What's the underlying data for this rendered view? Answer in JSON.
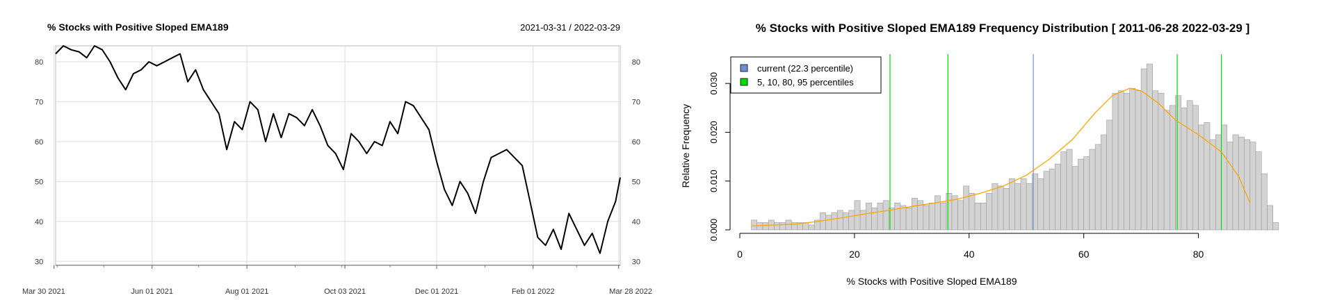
{
  "chart_data": [
    {
      "type": "line",
      "title": "% Stocks with Positive Sloped EMA189",
      "date_range_label": "2021-03-31 / 2022-03-29",
      "xlabel": "",
      "ylabel": "",
      "x_tick_labels": [
        "Mar 30 2021",
        "Jun 01 2021",
        "Aug 01 2021",
        "Oct 03 2021",
        "Dec 01 2021",
        "Feb 01 2022",
        "Mar 28 2022"
      ],
      "y_ticks": [
        30,
        40,
        50,
        60,
        70,
        80
      ],
      "ylim": [
        29,
        84
      ],
      "grid": true,
      "colors": {
        "line": "#000000",
        "grid": "#dddddd",
        "frame": "#bbbbbb"
      },
      "series": [
        {
          "x": [
            "2021-03-31",
            "2021-04-05",
            "2021-04-10",
            "2021-04-15",
            "2021-04-20",
            "2021-04-25",
            "2021-04-30",
            "2021-05-05",
            "2021-05-10",
            "2021-05-15",
            "2021-05-20",
            "2021-05-25",
            "2021-05-30",
            "2021-06-04",
            "2021-06-09",
            "2021-06-14",
            "2021-06-19",
            "2021-06-24",
            "2021-06-29",
            "2021-07-04",
            "2021-07-09",
            "2021-07-14",
            "2021-07-19",
            "2021-07-24",
            "2021-07-29",
            "2021-08-03",
            "2021-08-08",
            "2021-08-13",
            "2021-08-18",
            "2021-08-23",
            "2021-08-28",
            "2021-09-02",
            "2021-09-07",
            "2021-09-12",
            "2021-09-17",
            "2021-09-22",
            "2021-09-27",
            "2021-10-02",
            "2021-10-07",
            "2021-10-12",
            "2021-10-17",
            "2021-10-22",
            "2021-10-27",
            "2021-11-01",
            "2021-11-06",
            "2021-11-11",
            "2021-11-16",
            "2021-11-21",
            "2021-11-26",
            "2021-12-01",
            "2021-12-06",
            "2021-12-11",
            "2021-12-16",
            "2021-12-21",
            "2021-12-26",
            "2021-12-31",
            "2022-01-05",
            "2022-01-10",
            "2022-01-15",
            "2022-01-20",
            "2022-01-25",
            "2022-01-30",
            "2022-02-04",
            "2022-02-09",
            "2022-02-14",
            "2022-02-19",
            "2022-02-24",
            "2022-03-01",
            "2022-03-06",
            "2022-03-11",
            "2022-03-16",
            "2022-03-21",
            "2022-03-26",
            "2022-03-29"
          ],
          "values": [
            82,
            84,
            83,
            82.5,
            81,
            84,
            83,
            80,
            76,
            73,
            77,
            78,
            80,
            79,
            80,
            81,
            82,
            75,
            78,
            73,
            70,
            67,
            58,
            65,
            63,
            70,
            68,
            60,
            67,
            61,
            67,
            66,
            64,
            68,
            64,
            59,
            57,
            53,
            62,
            60,
            57,
            60,
            59,
            65,
            62,
            70,
            69,
            66,
            63,
            55,
            48,
            44,
            50,
            47,
            42,
            50,
            56,
            57,
            58,
            56,
            54,
            45,
            36,
            34,
            38,
            33,
            42,
            38,
            34,
            37,
            32,
            40,
            45,
            51
          ]
        }
      ]
    },
    {
      "type": "histogram",
      "title": "% Stocks with Positive Sloped EMA189 Frequency Distribution [ 2011-06-28 2022-03-29 ]",
      "xlabel": "% Stocks with Positive Sloped EMA189",
      "ylabel": "Relative Frequency",
      "xlim": [
        0,
        90
      ],
      "ylim": [
        0,
        0.036
      ],
      "x_ticks": [
        0,
        20,
        40,
        60,
        80
      ],
      "x_tick_labels": [
        "0",
        "20",
        "40",
        "60",
        "80"
      ],
      "y_ticks": [
        0.0,
        0.01,
        0.02,
        0.03
      ],
      "y_tick_labels": [
        "0.000",
        "0.010",
        "0.020",
        "0.030"
      ],
      "bin_width": 1,
      "bin_start": 2,
      "values": [
        0.002,
        0.0015,
        0.0015,
        0.002,
        0.0015,
        0.0015,
        0.002,
        0.0015,
        0.0015,
        0.0015,
        0.001,
        0.002,
        0.0035,
        0.003,
        0.0035,
        0.004,
        0.0035,
        0.004,
        0.006,
        0.004,
        0.0055,
        0.0045,
        0.0055,
        0.006,
        0.0045,
        0.0055,
        0.005,
        0.0045,
        0.0065,
        0.006,
        0.005,
        0.0055,
        0.007,
        0.0055,
        0.0075,
        0.007,
        0.006,
        0.009,
        0.0075,
        0.0055,
        0.0055,
        0.0075,
        0.0095,
        0.009,
        0.0085,
        0.0105,
        0.0095,
        0.0105,
        0.0095,
        0.0115,
        0.0105,
        0.012,
        0.0125,
        0.0135,
        0.016,
        0.0165,
        0.013,
        0.0145,
        0.015,
        0.0165,
        0.0175,
        0.0195,
        0.0225,
        0.028,
        0.0285,
        0.028,
        0.029,
        0.0285,
        0.033,
        0.034,
        0.0285,
        0.028,
        0.0245,
        0.0255,
        0.0275,
        0.025,
        0.0265,
        0.0255,
        0.0215,
        0.022,
        0.0185,
        0.0195,
        0.0215,
        0.018,
        0.0195,
        0.019,
        0.0185,
        0.018,
        0.016,
        0.0115,
        0.005,
        0.0015
      ],
      "density_curve": {
        "x": [
          2,
          6,
          10,
          14,
          18,
          22,
          26,
          30,
          34,
          38,
          42,
          46,
          50,
          54,
          58,
          62,
          65,
          68,
          70,
          73,
          76,
          80,
          84,
          87,
          89
        ],
        "y": [
          0.0008,
          0.001,
          0.0012,
          0.0018,
          0.0025,
          0.0033,
          0.004,
          0.0048,
          0.0055,
          0.0063,
          0.0075,
          0.009,
          0.0112,
          0.0145,
          0.0185,
          0.024,
          0.0275,
          0.029,
          0.0285,
          0.026,
          0.0225,
          0.0195,
          0.016,
          0.011,
          0.0055
        ]
      },
      "current": {
        "label": "current (22.3 percentile)",
        "value": 51.2
      },
      "percentiles": {
        "label": "5, 10, 80, 95 percentiles",
        "values": [
          26.2,
          36.3,
          76.3,
          84.0
        ]
      },
      "legend_position": "top-left",
      "colors": {
        "bars": "#d3d3d3",
        "bar_border": "#9a9a9a",
        "curve": "#ffa500",
        "current": "#6f8fd8",
        "percentiles": "#00dd00"
      }
    }
  ]
}
